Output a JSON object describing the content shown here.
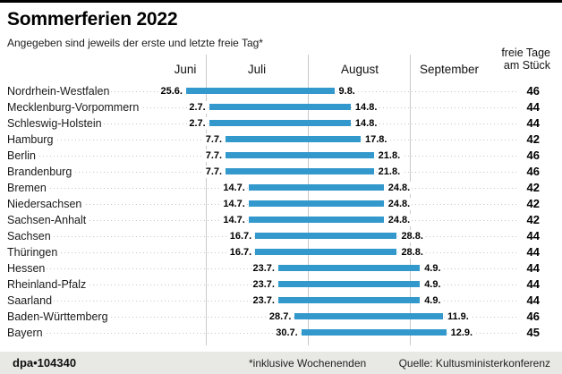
{
  "header": {
    "title": "Sommerferien 2022",
    "subtitle": "Angegeben sind jeweils der erste und letzte freie Tag*"
  },
  "chart_data": {
    "type": "bar",
    "orientation": "horizontal-date-range",
    "title": "Sommerferien 2022",
    "subtitle": "Angegeben sind jeweils der erste und letzte freie Tag*",
    "months": [
      "Juni",
      "Juli",
      "August",
      "September"
    ],
    "value_header": [
      "freie Tage",
      "am Stück"
    ],
    "bar_color": "#3399cc",
    "x_range": [
      "1.6.",
      "30.9."
    ],
    "grid": true,
    "rows": [
      {
        "state": "Nordrhein-Westfalen",
        "start": "25.6.",
        "end": "9.8.",
        "days": 46
      },
      {
        "state": "Mecklenburg-Vorpommern",
        "start": "2.7.",
        "end": "14.8.",
        "days": 44
      },
      {
        "state": "Schleswig-Holstein",
        "start": "2.7.",
        "end": "14.8.",
        "days": 44
      },
      {
        "state": "Hamburg",
        "start": "7.7.",
        "end": "17.8.",
        "days": 42
      },
      {
        "state": "Berlin",
        "start": "7.7.",
        "end": "21.8.",
        "days": 46
      },
      {
        "state": "Brandenburg",
        "start": "7.7.",
        "end": "21.8.",
        "days": 46
      },
      {
        "state": "Bremen",
        "start": "14.7.",
        "end": "24.8.",
        "days": 42
      },
      {
        "state": "Niedersachsen",
        "start": "14.7.",
        "end": "24.8.",
        "days": 42
      },
      {
        "state": "Sachsen-Anhalt",
        "start": "14.7.",
        "end": "24.8.",
        "days": 42
      },
      {
        "state": "Sachsen",
        "start": "16.7.",
        "end": "28.8.",
        "days": 44
      },
      {
        "state": "Thüringen",
        "start": "16.7.",
        "end": "28.8.",
        "days": 44
      },
      {
        "state": "Hessen",
        "start": "23.7.",
        "end": "4.9.",
        "days": 44
      },
      {
        "state": "Rheinland-Pfalz",
        "start": "23.7.",
        "end": "4.9.",
        "days": 44
      },
      {
        "state": "Saarland",
        "start": "23.7.",
        "end": "4.9.",
        "days": 44
      },
      {
        "state": "Baden-Württemberg",
        "start": "28.7.",
        "end": "11.9.",
        "days": 46
      },
      {
        "state": "Bayern",
        "start": "30.7.",
        "end": "12.9.",
        "days": 45
      }
    ]
  },
  "footer": {
    "credit": "dpa•104340",
    "note": "*inklusive Wochenenden",
    "source": "Quelle: Kultusministerkonferenz"
  }
}
